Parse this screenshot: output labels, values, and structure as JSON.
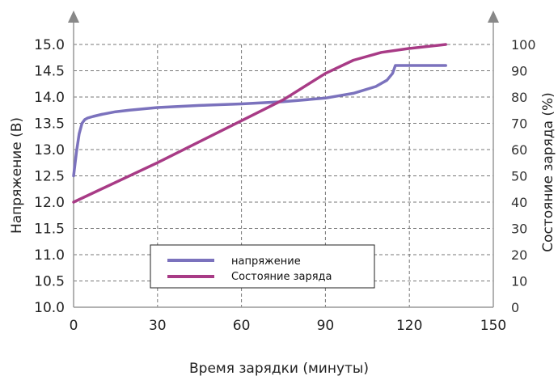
{
  "chart_data": {
    "type": "line",
    "xlabel": "Время зарядки (минуты)",
    "ylabel_left": "Напряжение (В)",
    "ylabel_right": "Состояние заряда (%)",
    "xlim": [
      0,
      150
    ],
    "ylim_left": [
      10.0,
      15.0
    ],
    "ylim_right": [
      0,
      100
    ],
    "x_ticks": [
      "0",
      "30",
      "60",
      "90",
      "120",
      "150"
    ],
    "y_left_ticks": [
      "10.0",
      "10.5",
      "11.0",
      "11.5",
      "12.0",
      "12.5",
      "13.0",
      "13.5",
      "14.0",
      "14.5",
      "15.0"
    ],
    "y_right_ticks": [
      "0",
      "10",
      "20",
      "30",
      "40",
      "50",
      "60",
      "70",
      "80",
      "90",
      "100"
    ],
    "grid": true,
    "legend_position": "bottom-center",
    "series": [
      {
        "name": "напряжение",
        "axis": "left",
        "color": "#7b72bd",
        "x": [
          0,
          1,
          2,
          3,
          4,
          5,
          7,
          10,
          15,
          20,
          30,
          45,
          60,
          75,
          90,
          100,
          108,
          112,
          114,
          115,
          116,
          125,
          133
        ],
        "y": [
          12.5,
          12.95,
          13.3,
          13.5,
          13.57,
          13.6,
          13.63,
          13.67,
          13.72,
          13.75,
          13.8,
          13.84,
          13.87,
          13.91,
          13.98,
          14.07,
          14.2,
          14.32,
          14.45,
          14.6,
          14.6,
          14.6,
          14.6
        ]
      },
      {
        "name": "Состояние заряда",
        "axis": "right",
        "color": "#a83b86",
        "x": [
          0,
          30,
          60,
          75,
          90,
          100,
          110,
          120,
          133
        ],
        "y": [
          40,
          55,
          71,
          79,
          89,
          94,
          97,
          98.5,
          100
        ]
      }
    ]
  }
}
